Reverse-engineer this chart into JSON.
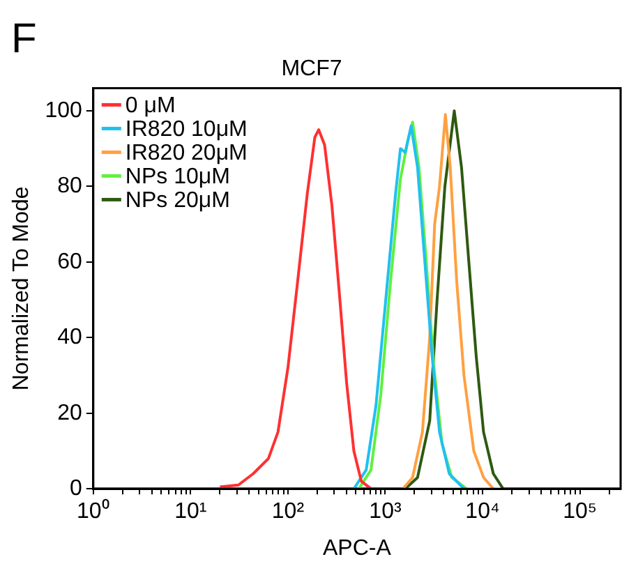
{
  "chart_data": {
    "type": "line",
    "title": "MCF7",
    "xlabel": "APC-A",
    "ylabel": "Normalized To Mode",
    "annotations": [
      "F"
    ],
    "log": "x",
    "grid": false,
    "legend": "top left",
    "marker": "none",
    "line_style": "solid",
    "xlim": [
      1,
      262144
    ],
    "ylim": [
      0,
      106
    ],
    "yticks": [
      0,
      20,
      40,
      60,
      80,
      100
    ],
    "xticks": [
      {
        "value": 1,
        "label": "10⁰"
      },
      {
        "value": 2,
        "label": null
      },
      {
        "value": 3,
        "label": null
      },
      {
        "value": 4,
        "label": null
      },
      {
        "value": 5,
        "label": null
      },
      {
        "value": 6,
        "label": null
      },
      {
        "value": 7,
        "label": null
      },
      {
        "value": 8,
        "label": null
      },
      {
        "value": 9,
        "label": null
      },
      {
        "value": 10,
        "label": "10¹"
      },
      {
        "value": 20,
        "label": null
      },
      {
        "value": 30,
        "label": null
      },
      {
        "value": 40,
        "label": null
      },
      {
        "value": 50,
        "label": null
      },
      {
        "value": 60,
        "label": null
      },
      {
        "value": 70,
        "label": null
      },
      {
        "value": 80,
        "label": null
      },
      {
        "value": 90,
        "label": null
      },
      {
        "value": 100,
        "label": "10²"
      },
      {
        "value": 200,
        "label": null
      },
      {
        "value": 300,
        "label": null
      },
      {
        "value": 400,
        "label": null
      },
      {
        "value": 500,
        "label": null
      },
      {
        "value": 600,
        "label": null
      },
      {
        "value": 700,
        "label": null
      },
      {
        "value": 800,
        "label": null
      },
      {
        "value": 900,
        "label": null
      },
      {
        "value": 1000,
        "label": "10³"
      },
      {
        "value": 2000,
        "label": null
      },
      {
        "value": 3000,
        "label": null
      },
      {
        "value": 4000,
        "label": null
      },
      {
        "value": 5000,
        "label": null
      },
      {
        "value": 6000,
        "label": null
      },
      {
        "value": 7000,
        "label": null
      },
      {
        "value": 8000,
        "label": null
      },
      {
        "value": 9000,
        "label": null
      },
      {
        "value": 10000,
        "label": "10⁴"
      },
      {
        "value": 20000,
        "label": null
      },
      {
        "value": 30000,
        "label": null
      },
      {
        "value": 40000,
        "label": null
      },
      {
        "value": 50000,
        "label": null
      },
      {
        "value": 60000,
        "label": null
      },
      {
        "value": 70000,
        "label": null
      },
      {
        "value": 80000,
        "label": null
      },
      {
        "value": 90000,
        "label": null
      },
      {
        "value": 100000,
        "label": "10⁵"
      },
      {
        "value": 200000,
        "label": null
      }
    ],
    "series": [
      {
        "name": "0 μM",
        "color": "#ff3030",
        "x": [
          20,
          31,
          44,
          63,
          79,
          100,
          126,
          158,
          189,
          207,
          238,
          283,
          337,
          401,
          476,
          568,
          714
        ],
        "values": [
          0.5,
          1,
          4,
          8,
          15,
          32,
          55,
          78,
          93,
          95,
          91,
          75,
          52,
          28,
          10,
          2,
          0
        ]
      },
      {
        "name": "IR820 10μM",
        "color": "#20c0f0",
        "x": [
          476,
          637,
          803,
          1012,
          1276,
          1432,
          1607,
          1845,
          2148,
          2553,
          3034,
          3611,
          4550,
          6440
        ],
        "values": [
          0,
          5,
          22,
          50,
          78,
          90,
          89,
          96,
          85,
          60,
          35,
          15,
          4,
          0
        ]
      },
      {
        "name": "IR820 20μM",
        "color": "#ffa040",
        "x": [
          1517,
          1910,
          2410,
          2864,
          3220,
          3611,
          4150,
          4656,
          5420,
          6440,
          8128,
          10240,
          12900
        ],
        "values": [
          0,
          3,
          15,
          40,
          70,
          80,
          99,
          85,
          55,
          30,
          10,
          3,
          0
        ]
      },
      {
        "name": "NPs 10μM",
        "color": "#60f040",
        "x": [
          535,
          714,
          901,
          1135,
          1432,
          1702,
          1910,
          2222,
          2641,
          3142,
          3828,
          4820,
          6823
        ],
        "values": [
          0,
          5,
          25,
          55,
          82,
          92,
          97,
          85,
          60,
          33,
          12,
          3,
          0
        ]
      },
      {
        "name": "NPs 20μM",
        "color": "#2e5a10",
        "x": [
          1,
          1607,
          2148,
          2864,
          3410,
          4100,
          5120,
          6080,
          7230,
          8610,
          10240,
          12900,
          16260,
          262144
        ],
        "values": [
          0,
          0,
          3,
          18,
          50,
          80,
          100,
          85,
          60,
          35,
          15,
          4,
          0,
          0
        ]
      }
    ]
  }
}
